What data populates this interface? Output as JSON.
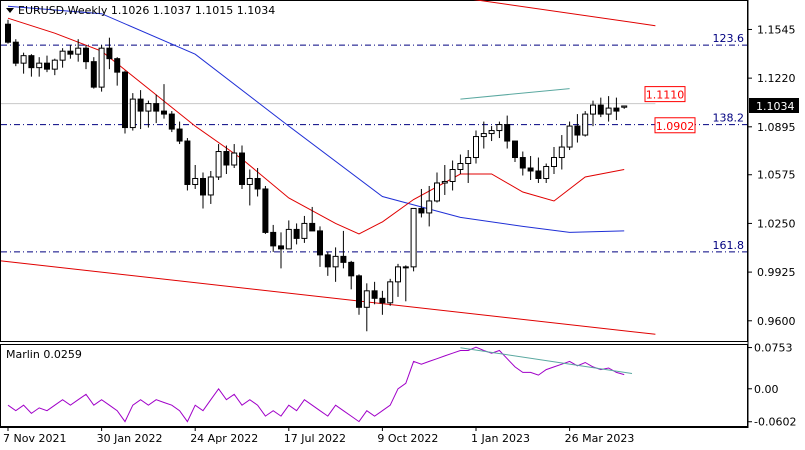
{
  "symbol_header": "EURUSD,Weekly  1.1026 1.1037 1.1015 1.1034",
  "chart_data": {
    "type": "candlestick",
    "symbol": "EURUSD",
    "timeframe": "Weekly",
    "ohlc_header": {
      "open": 1.1026,
      "high": 1.1037,
      "low": 1.1015,
      "close": 1.1034
    },
    "price_axis": {
      "ticks": [
        "1.1545",
        "1.1220",
        "1.0895",
        "1.0575",
        "1.0250",
        "0.9925",
        "0.9600"
      ],
      "range": [
        0.9465,
        1.1735
      ]
    },
    "time_axis": {
      "labels": [
        "7 Nov 2021",
        "30 Jan 2022",
        "24 Apr 2022",
        "17 Jul 2022",
        "9 Oct 2022",
        "1 Jan 2023",
        "26 Mar 2023"
      ],
      "label_bar_index": [
        0,
        12,
        24,
        36,
        48,
        60,
        72
      ]
    },
    "candles": [
      [
        1.158,
        1.161,
        1.145,
        1.146
      ],
      [
        1.146,
        1.148,
        1.13,
        1.132
      ],
      [
        1.132,
        1.139,
        1.125,
        1.137
      ],
      [
        1.137,
        1.138,
        1.123,
        1.129
      ],
      [
        1.129,
        1.136,
        1.123,
        1.132
      ],
      [
        1.132,
        1.137,
        1.126,
        1.128
      ],
      [
        1.128,
        1.135,
        1.124,
        1.134
      ],
      [
        1.134,
        1.142,
        1.129,
        1.14
      ],
      [
        1.14,
        1.144,
        1.135,
        1.138
      ],
      [
        1.138,
        1.148,
        1.133,
        1.142
      ],
      [
        1.142,
        1.144,
        1.128,
        1.133
      ],
      [
        1.133,
        1.136,
        1.115,
        1.116
      ],
      [
        1.116,
        1.144,
        1.113,
        1.142
      ],
      [
        1.142,
        1.149,
        1.128,
        1.135
      ],
      [
        1.135,
        1.136,
        1.117,
        1.126
      ],
      [
        1.126,
        1.127,
        1.085,
        1.089
      ],
      [
        1.089,
        1.112,
        1.087,
        1.108
      ],
      [
        1.108,
        1.114,
        1.088,
        1.1
      ],
      [
        1.1,
        1.107,
        1.089,
        1.105
      ],
      [
        1.105,
        1.111,
        1.092,
        1.1
      ],
      [
        1.1,
        1.118,
        1.095,
        1.098
      ],
      [
        1.098,
        1.1,
        1.086,
        1.088
      ],
      [
        1.088,
        1.093,
        1.078,
        1.08
      ],
      [
        1.08,
        1.082,
        1.047,
        1.051
      ],
      [
        1.051,
        1.064,
        1.048,
        1.055
      ],
      [
        1.055,
        1.059,
        1.035,
        1.044
      ],
      [
        1.044,
        1.06,
        1.038,
        1.056
      ],
      [
        1.056,
        1.078,
        1.054,
        1.073
      ],
      [
        1.073,
        1.077,
        1.058,
        1.064
      ],
      [
        1.064,
        1.078,
        1.062,
        1.072
      ],
      [
        1.072,
        1.077,
        1.048,
        1.051
      ],
      [
        1.051,
        1.061,
        1.037,
        1.055
      ],
      [
        1.055,
        1.062,
        1.043,
        1.048
      ],
      [
        1.048,
        1.05,
        1.018,
        1.019
      ],
      [
        1.019,
        1.024,
        1.006,
        1.01
      ],
      [
        1.01,
        1.019,
        0.995,
        1.008
      ],
      [
        1.008,
        1.027,
        1.008,
        1.021
      ],
      [
        1.021,
        1.025,
        1.011,
        1.015
      ],
      [
        1.015,
        1.03,
        1.012,
        1.025
      ],
      [
        1.025,
        1.036,
        1.02,
        1.02
      ],
      [
        1.02,
        1.023,
        0.996,
        1.004
      ],
      [
        1.004,
        1.006,
        0.99,
        0.996
      ],
      [
        0.996,
        1.009,
        0.986,
        1.003
      ],
      [
        1.003,
        1.02,
        0.995,
        0.999
      ],
      [
        0.999,
        1.0,
        0.981,
        0.99
      ],
      [
        0.99,
        0.991,
        0.964,
        0.969
      ],
      [
        0.969,
        0.985,
        0.953,
        0.98
      ],
      [
        0.98,
        0.986,
        0.971,
        0.975
      ],
      [
        0.975,
        0.98,
        0.964,
        0.972
      ],
      [
        0.972,
        0.988,
        0.97,
        0.986
      ],
      [
        0.986,
        0.998,
        0.976,
        0.996
      ],
      [
        0.996,
        0.997,
        0.973,
        0.996
      ],
      [
        0.996,
        1.035,
        0.993,
        1.035
      ],
      [
        1.035,
        1.048,
        1.029,
        1.032
      ],
      [
        1.032,
        1.05,
        1.023,
        1.04
      ],
      [
        1.04,
        1.059,
        1.039,
        1.052
      ],
      [
        1.052,
        1.064,
        1.044,
        1.053
      ],
      [
        1.053,
        1.067,
        1.047,
        1.061
      ],
      [
        1.061,
        1.071,
        1.058,
        1.065
      ],
      [
        1.065,
        1.074,
        1.052,
        1.069
      ],
      [
        1.069,
        1.087,
        1.065,
        1.083
      ],
      [
        1.083,
        1.093,
        1.075,
        1.085
      ],
      [
        1.085,
        1.09,
        1.08,
        1.087
      ],
      [
        1.087,
        1.093,
        1.082,
        1.091
      ],
      [
        1.091,
        1.097,
        1.075,
        1.08
      ],
      [
        1.08,
        1.08,
        1.066,
        1.069
      ],
      [
        1.069,
        1.073,
        1.057,
        1.062
      ],
      [
        1.062,
        1.07,
        1.054,
        1.06
      ],
      [
        1.06,
        1.069,
        1.052,
        1.055
      ],
      [
        1.055,
        1.065,
        1.052,
        1.063
      ],
      [
        1.063,
        1.076,
        1.058,
        1.069
      ],
      [
        1.069,
        1.084,
        1.061,
        1.076
      ],
      [
        1.076,
        1.093,
        1.074,
        1.09
      ],
      [
        1.09,
        1.098,
        1.079,
        1.084
      ],
      [
        1.084,
        1.1,
        1.083,
        1.098
      ],
      [
        1.098,
        1.107,
        1.09,
        1.104
      ],
      [
        1.104,
        1.109,
        1.096,
        1.098
      ],
      [
        1.098,
        1.11,
        1.093,
        1.102
      ],
      [
        1.102,
        1.109,
        1.094,
        1.1
      ],
      [
        1.1026,
        1.1037,
        1.1015,
        1.1034
      ]
    ],
    "moving_average_blue": [
      [
        0,
        1.17
      ],
      [
        12,
        1.165
      ],
      [
        24,
        1.138
      ],
      [
        36,
        1.09
      ],
      [
        48,
        1.043
      ],
      [
        58,
        1.029
      ],
      [
        66,
        1.023
      ],
      [
        72,
        1.019
      ],
      [
        79,
        1.02
      ]
    ],
    "moving_average_red": [
      [
        0,
        1.162
      ],
      [
        6,
        1.152
      ],
      [
        12,
        1.14
      ],
      [
        18,
        1.115
      ],
      [
        24,
        1.09
      ],
      [
        30,
        1.068
      ],
      [
        36,
        1.042
      ],
      [
        42,
        1.025
      ],
      [
        45,
        1.018
      ],
      [
        48,
        1.026
      ],
      [
        52,
        1.041
      ],
      [
        58,
        1.058
      ],
      [
        62,
        1.058
      ],
      [
        66,
        1.046
      ],
      [
        70,
        1.04
      ],
      [
        74,
        1.056
      ],
      [
        79,
        1.061
      ]
    ],
    "fibonacci_levels": [
      {
        "label": "123.6",
        "price": 1.144,
        "color": "#000080"
      },
      {
        "label": "138.2",
        "price": 1.091,
        "color": "#000080"
      },
      {
        "label": "161.8",
        "price": 1.006,
        "color": "#000080"
      }
    ],
    "level_boxes": [
      {
        "label": "1.1110",
        "price": 1.111,
        "color": "#ff0000"
      },
      {
        "label": "1.0902",
        "price": 1.0902,
        "color": "#ff0000"
      }
    ],
    "current_price_label": "1.1034",
    "current_price": 1.1034,
    "channel_upper": [
      [
        55,
        1.178
      ],
      [
        83,
        1.157
      ]
    ],
    "channel_lower": [
      [
        -1,
        1.0
      ],
      [
        83,
        0.951
      ]
    ],
    "trendline_price_teal": [
      [
        58,
        1.108
      ],
      [
        72,
        1.115
      ]
    ],
    "grey_resistance": [
      [
        -1,
        1.105
      ],
      [
        83,
        1.105
      ]
    ],
    "oscillator": {
      "name": "Marlin",
      "value_label": "Marlin 0.0259",
      "ticks": [
        "0.0753",
        "0.00",
        "-0.0602"
      ],
      "range": [
        -0.068,
        0.08
      ],
      "values": [
        -0.03,
        -0.04,
        -0.03,
        -0.045,
        -0.035,
        -0.04,
        -0.03,
        -0.02,
        -0.03,
        -0.02,
        -0.01,
        -0.03,
        -0.02,
        -0.03,
        -0.04,
        -0.06,
        -0.03,
        -0.02,
        -0.03,
        -0.02,
        -0.025,
        -0.03,
        -0.04,
        -0.06,
        -0.03,
        -0.04,
        -0.02,
        0.0,
        -0.02,
        -0.01,
        -0.03,
        -0.02,
        -0.03,
        -0.05,
        -0.04,
        -0.05,
        -0.03,
        -0.04,
        -0.02,
        -0.03,
        -0.04,
        -0.05,
        -0.03,
        -0.04,
        -0.05,
        -0.06,
        -0.04,
        -0.05,
        -0.04,
        -0.03,
        0.0,
        0.01,
        0.05,
        0.045,
        0.05,
        0.055,
        0.06,
        0.065,
        0.07,
        0.07,
        0.076,
        0.07,
        0.065,
        0.07,
        0.055,
        0.04,
        0.03,
        0.03,
        0.025,
        0.035,
        0.04,
        0.045,
        0.05,
        0.042,
        0.048,
        0.04,
        0.035,
        0.038,
        0.03,
        0.026
      ],
      "teal_trendline": [
        [
          58,
          0.075
        ],
        [
          80,
          0.028
        ]
      ]
    }
  }
}
